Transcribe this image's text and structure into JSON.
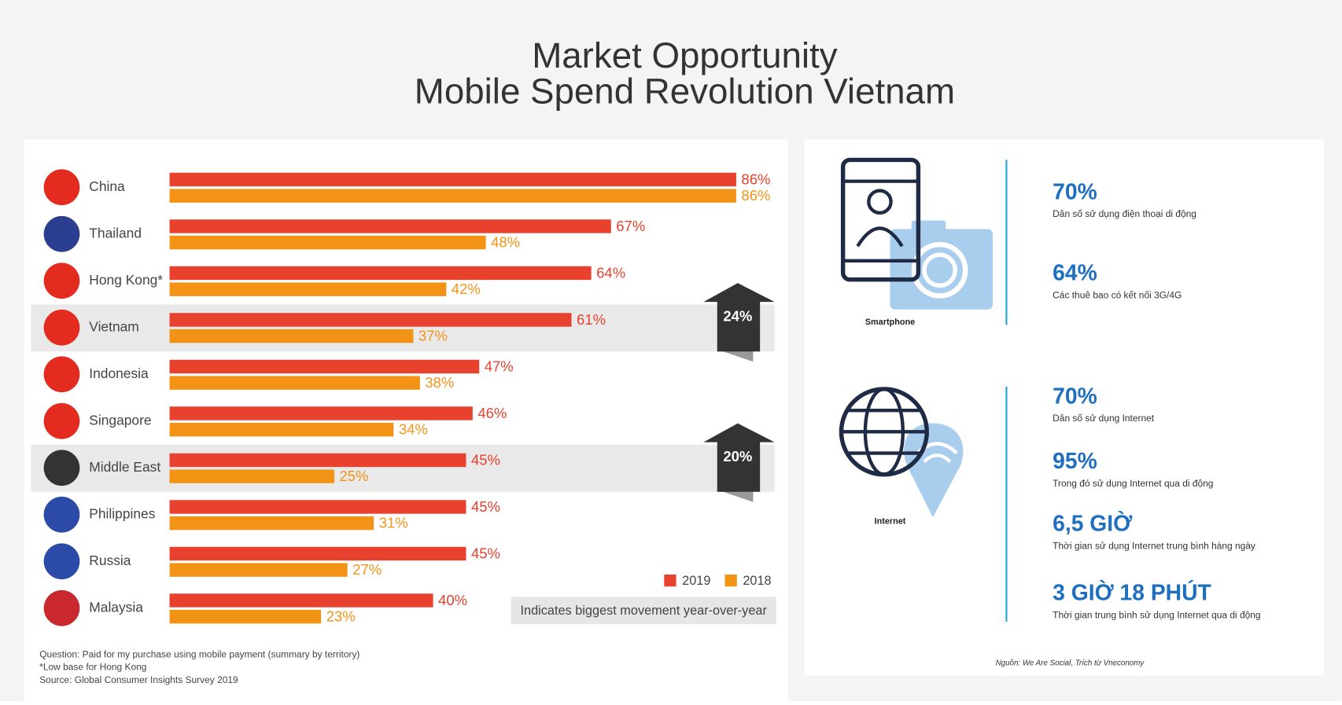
{
  "header": {
    "title": "Market Opportunity",
    "subtitle": "Mobile Spend Revolution Vietnam"
  },
  "chart_data": {
    "type": "barh",
    "categories": [
      "China",
      "Thailand",
      "Hong Kong*",
      "Vietnam",
      "Indonesia",
      "Singapore",
      "Middle East",
      "Philippines",
      "Russia",
      "Malaysia"
    ],
    "series": [
      {
        "name": "2019",
        "color": "#e8412e",
        "values": [
          86,
          67,
          64,
          61,
          47,
          46,
          45,
          45,
          45,
          40
        ],
        "value_labels": [
          "86%",
          "67%",
          "64%",
          "61%",
          "47%",
          "46%",
          "45%",
          "45%",
          "45%",
          "40%"
        ]
      },
      {
        "name": "2018",
        "color": "#f39316",
        "values": [
          86,
          48,
          42,
          37,
          38,
          34,
          25,
          31,
          27,
          23
        ],
        "value_labels": [
          "86%",
          "48%",
          "42%",
          "37%",
          "38%",
          "34%",
          "25%",
          "31%",
          "27%",
          "23%"
        ]
      }
    ],
    "xlim": [
      0,
      100
    ],
    "annotations": [
      {
        "text": "24%",
        "category": "Vietnam"
      },
      {
        "text": "20%",
        "category": "Middle East"
      }
    ],
    "note": "Indicates biggest movement year-over-year",
    "footnotes": [
      "Question: Paid for my purchase using mobile payment (summary by territory)",
      "*Low base for Hong Kong",
      "Source: Global Consumer Insights Survey 2019"
    ]
  },
  "infographic": {
    "smartphone": {
      "label": "Smartphone",
      "stats": [
        {
          "value": "70%",
          "desc": "Dân số sử dụng điện thoại di động"
        },
        {
          "value": "64%",
          "desc": "Các thuê bao có kết nối 3G/4G"
        }
      ]
    },
    "internet": {
      "label": "Internet",
      "stats": [
        {
          "value": "70%",
          "desc": "Dân số sử dụng Internet"
        },
        {
          "value": "95%",
          "desc": "Trong đó sử dụng Internet qua di động"
        },
        {
          "value": "6,5 GIỜ",
          "desc": "Thời gian sử dụng Internet trung bình hàng ngày"
        },
        {
          "value": "3 GIỜ 18 PHÚT",
          "desc": "Thời gian trung bình sử dụng Internet qua di động"
        }
      ]
    },
    "source": "Nguồn: We Are Social, Trích từ Vneconomy"
  }
}
